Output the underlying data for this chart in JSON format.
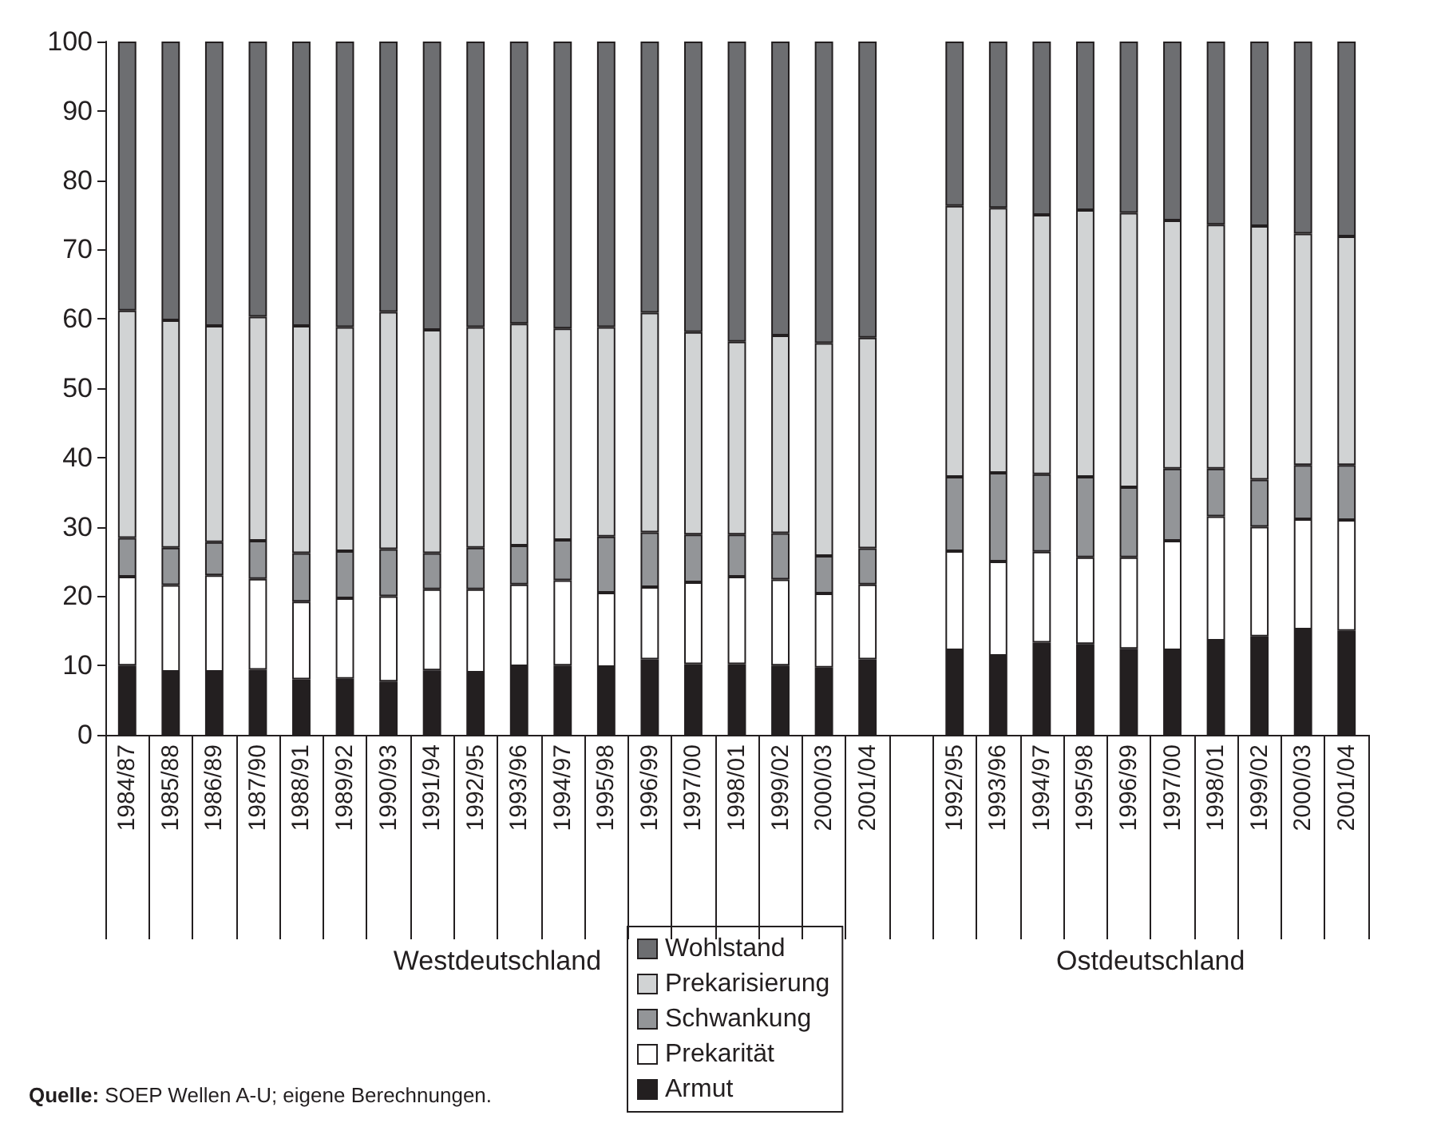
{
  "chart_data": {
    "type": "bar",
    "stacked": true,
    "categories": [
      "1984/87",
      "1985/88",
      "1986/89",
      "1987/90",
      "1988/91",
      "1989/92",
      "1990/93",
      "1991/94",
      "1992/95",
      "1993/96",
      "1994/97",
      "1995/98",
      "1996/99",
      "1997/00",
      "1998/01",
      "1999/02",
      "2000/03",
      "2001/04",
      null,
      "1992/95",
      "1993/96",
      "1994/97",
      "1995/98",
      "1996/99",
      "1997/00",
      "1998/01",
      "1999/02",
      "2000/03",
      "2001/04"
    ],
    "series": [
      {
        "name": "Armut",
        "color": "#231f20",
        "values": [
          10,
          9.1,
          9.1,
          9.4,
          8,
          8.1,
          7.7,
          9.3,
          9,
          9.9,
          10,
          9.8,
          10.9,
          10.2,
          10.2,
          10,
          9.7,
          10.9,
          null,
          12.2,
          11.4,
          13.3,
          13.1,
          12.4,
          12.2,
          13.6,
          14.2,
          15.2,
          15
        ]
      },
      {
        "name": "Prekarität",
        "color": "#ffffff",
        "values": [
          12.8,
          12.5,
          13.9,
          13.1,
          11.2,
          11.6,
          12.3,
          11.7,
          12,
          11.8,
          12.3,
          10.7,
          10.4,
          11.8,
          12.6,
          12.4,
          10.7,
          10.8,
          null,
          14.3,
          13.6,
          13.1,
          12.5,
          13.2,
          15.8,
          17.9,
          15.8,
          15.9,
          16
        ]
      },
      {
        "name": "Schwankung",
        "color": "#939598",
        "values": [
          5.6,
          5.4,
          4.8,
          5.5,
          7,
          6.8,
          6.8,
          5.2,
          6,
          5.6,
          5.8,
          8.1,
          7.9,
          6.9,
          6.1,
          6.7,
          5.4,
          5.2,
          null,
          10.7,
          12.8,
          11.2,
          11.6,
          10.1,
          10.4,
          6.9,
          6.8,
          7.8,
          7.9
        ]
      },
      {
        "name": "Prekarisierung",
        "color": "#d1d3d4",
        "values": [
          32.8,
          32.8,
          31.2,
          32.3,
          32.8,
          32.3,
          34.2,
          32.2,
          31.8,
          32,
          30.5,
          30.2,
          31.7,
          29.2,
          27.8,
          28.5,
          30.7,
          30.4,
          null,
          39.1,
          38.2,
          37.4,
          38.5,
          39.6,
          35.8,
          35.2,
          36.6,
          33.4,
          33
        ]
      },
      {
        "name": "Wohlstand",
        "color": "#6d6e71",
        "values": [
          38.8,
          40.2,
          41,
          39.7,
          41,
          41.2,
          39,
          41.6,
          41.2,
          40.7,
          41.4,
          41.2,
          39.1,
          41.9,
          43.3,
          42.4,
          43.5,
          42.7,
          null,
          23.7,
          24,
          25,
          24.3,
          24.7,
          25.8,
          26.4,
          26.6,
          27.7,
          28.1
        ]
      }
    ],
    "ylim": [
      0,
      100
    ],
    "yticks": [
      0,
      10,
      20,
      30,
      40,
      50,
      60,
      70,
      80,
      90,
      100
    ],
    "grid": false,
    "legend": "bottom",
    "annotations": [
      "Westdeutschland",
      "Ostdeutschland",
      "Quelle: SOEP Wellen A-U; eigene Berechnungen."
    ]
  }
}
